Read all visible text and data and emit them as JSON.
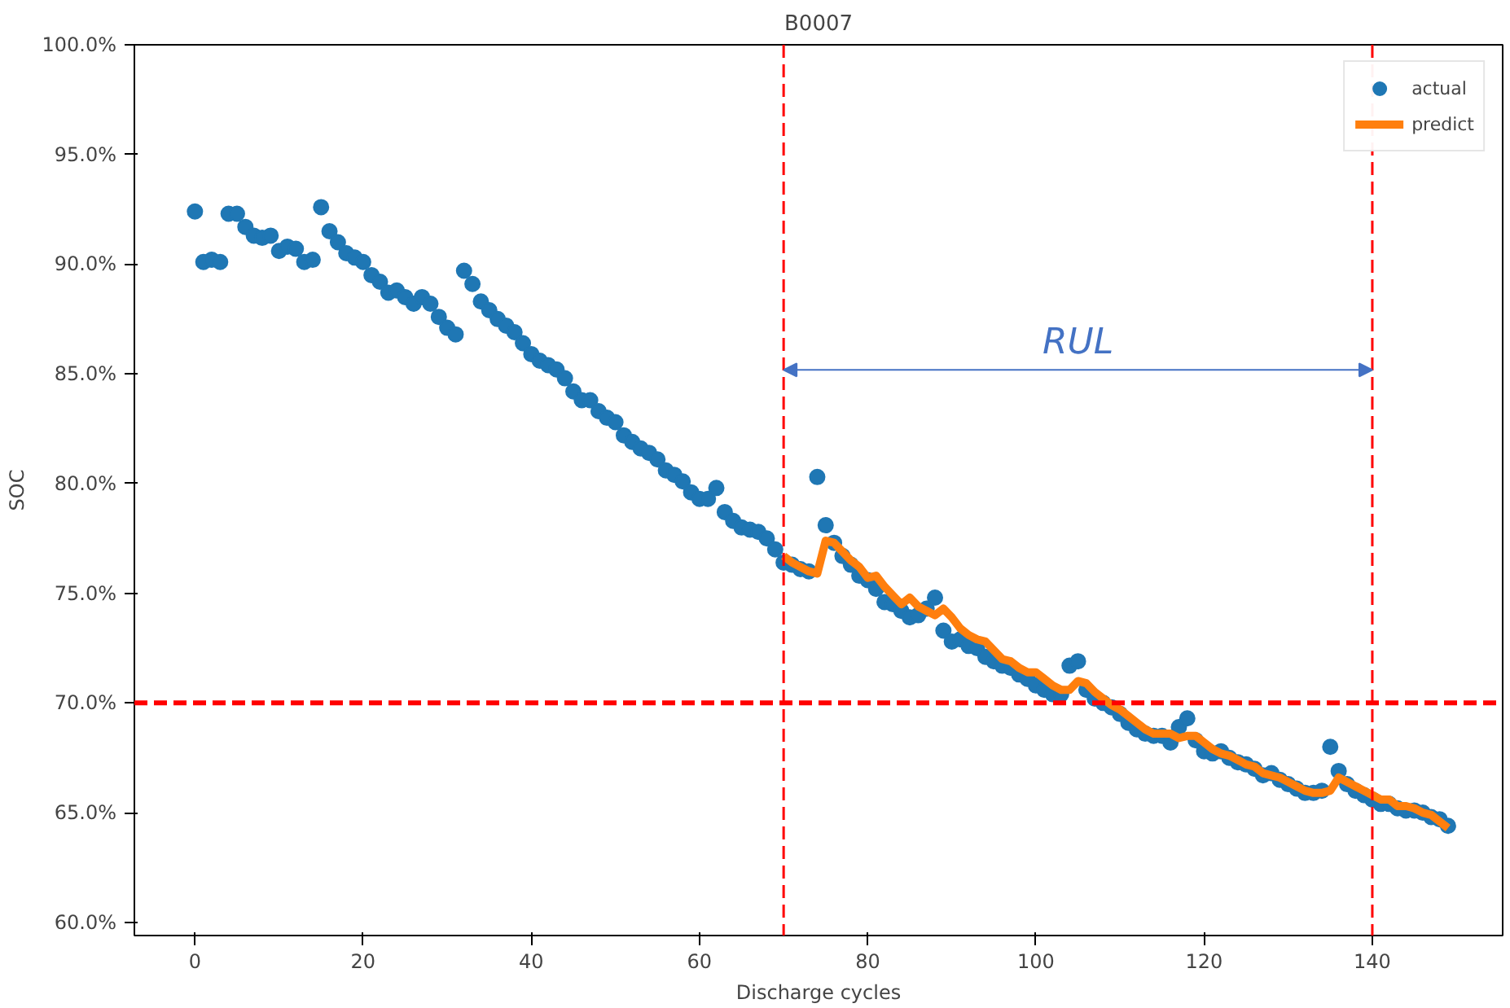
{
  "chart_data": {
    "type": "scatter",
    "title": "B0007",
    "xlabel": "Discharge cycles",
    "ylabel": "SOC",
    "xlim": [
      -7.2,
      155.5
    ],
    "ylim": [
      59.4,
      100
    ],
    "xticks": [
      0,
      20,
      40,
      60,
      80,
      100,
      120,
      140
    ],
    "yticks": [
      {
        "value": 60,
        "label": "60.0%"
      },
      {
        "value": 65,
        "label": "65.0%"
      },
      {
        "value": 70,
        "label": "70.0%"
      },
      {
        "value": 75,
        "label": "75.0%"
      },
      {
        "value": 80,
        "label": "80.0%"
      },
      {
        "value": 85,
        "label": "85.0%"
      },
      {
        "value": 90,
        "label": "90.0%"
      },
      {
        "value": 95,
        "label": "95.0%"
      },
      {
        "value": 100,
        "label": "100.0%"
      }
    ],
    "legend": "top right",
    "grid": false,
    "marker": "circle",
    "series": [
      {
        "name": "actual",
        "color": "#1f77b4",
        "x": [
          0,
          1,
          2,
          3,
          4,
          5,
          6,
          7,
          8,
          9,
          10,
          11,
          12,
          13,
          14,
          15,
          16,
          17,
          18,
          19,
          20,
          21,
          22,
          23,
          24,
          25,
          26,
          27,
          28,
          29,
          30,
          31,
          32,
          33,
          34,
          35,
          36,
          37,
          38,
          39,
          40,
          41,
          42,
          43,
          44,
          45,
          46,
          47,
          48,
          49,
          50,
          51,
          52,
          53,
          54,
          55,
          56,
          57,
          58,
          59,
          60,
          61,
          62,
          63,
          64,
          65,
          66,
          67,
          68,
          69,
          70,
          71,
          72,
          73,
          74,
          75,
          76,
          77,
          78,
          79,
          80,
          81,
          82,
          83,
          84,
          85,
          86,
          87,
          88,
          89,
          90,
          91,
          92,
          93,
          94,
          95,
          96,
          97,
          98,
          99,
          100,
          101,
          102,
          103,
          104,
          105,
          106,
          107,
          108,
          109,
          110,
          111,
          112,
          113,
          114,
          115,
          116,
          117,
          118,
          119,
          120,
          121,
          122,
          123,
          124,
          125,
          126,
          127,
          128,
          129,
          130,
          131,
          132,
          133,
          134,
          135,
          136,
          137,
          138,
          139,
          140,
          141,
          142,
          143,
          144,
          145,
          146,
          147,
          148,
          149
        ],
        "values": [
          92.4,
          90.1,
          90.2,
          90.1,
          92.3,
          92.3,
          91.7,
          91.3,
          91.2,
          91.3,
          90.6,
          90.8,
          90.7,
          90.1,
          90.2,
          92.6,
          91.5,
          91.0,
          90.5,
          90.3,
          90.1,
          89.5,
          89.2,
          88.7,
          88.8,
          88.5,
          88.2,
          88.5,
          88.2,
          87.6,
          87.1,
          86.8,
          89.7,
          89.1,
          88.3,
          87.9,
          87.5,
          87.2,
          86.9,
          86.4,
          85.9,
          85.6,
          85.4,
          85.2,
          84.8,
          84.2,
          83.8,
          83.8,
          83.3,
          83.0,
          82.8,
          82.2,
          81.9,
          81.6,
          81.4,
          81.1,
          80.6,
          80.4,
          80.1,
          79.6,
          79.3,
          79.3,
          79.8,
          78.7,
          78.3,
          78.0,
          77.9,
          77.8,
          77.5,
          77.0,
          76.4,
          76.3,
          76.1,
          76.0,
          80.3,
          78.1,
          77.3,
          76.7,
          76.3,
          75.8,
          75.6,
          75.2,
          74.6,
          74.5,
          74.2,
          73.9,
          74.0,
          74.3,
          74.8,
          73.3,
          72.8,
          72.9,
          72.6,
          72.5,
          72.1,
          71.9,
          71.7,
          71.6,
          71.3,
          71.1,
          70.8,
          70.6,
          70.4,
          70.4,
          71.7,
          71.9,
          70.6,
          70.2,
          70.0,
          69.8,
          69.5,
          69.1,
          68.8,
          68.6,
          68.5,
          68.5,
          68.2,
          68.9,
          69.3,
          68.3,
          67.8,
          67.7,
          67.8,
          67.5,
          67.3,
          67.2,
          67.0,
          66.7,
          66.8,
          66.5,
          66.3,
          66.1,
          65.9,
          65.9,
          66.0,
          68.0,
          66.9,
          66.3,
          66.0,
          65.8,
          65.6,
          65.4,
          65.4,
          65.2,
          65.1,
          65.1,
          65.0,
          64.8,
          64.7,
          64.4
        ]
      },
      {
        "name": "predict",
        "type": "line",
        "color": "#ff7f0e",
        "marker": "none",
        "line_style": "solid",
        "x": [
          70,
          71,
          72,
          73,
          74,
          75,
          76,
          77,
          78,
          79,
          80,
          81,
          82,
          83,
          84,
          85,
          86,
          87,
          88,
          89,
          90,
          91,
          92,
          93,
          94,
          95,
          96,
          97,
          98,
          99,
          100,
          101,
          102,
          103,
          104,
          105,
          106,
          107,
          108,
          109,
          110,
          111,
          112,
          113,
          114,
          115,
          116,
          117,
          118,
          119,
          120,
          121,
          122,
          123,
          124,
          125,
          126,
          127,
          128,
          129,
          130,
          131,
          132,
          133,
          134,
          135,
          136,
          137,
          138,
          139,
          140,
          141,
          142,
          143,
          144,
          145,
          146,
          147,
          148,
          149
        ],
        "values": [
          76.7,
          76.4,
          76.2,
          76.0,
          75.9,
          77.4,
          77.3,
          76.9,
          76.5,
          76.2,
          75.7,
          75.8,
          75.3,
          74.9,
          74.5,
          74.8,
          74.4,
          74.2,
          74.0,
          74.3,
          73.9,
          73.4,
          73.1,
          72.9,
          72.8,
          72.4,
          72.0,
          71.9,
          71.6,
          71.4,
          71.4,
          71.1,
          70.8,
          70.6,
          70.6,
          71.0,
          70.9,
          70.5,
          70.2,
          69.9,
          69.7,
          69.4,
          69.1,
          68.8,
          68.6,
          68.6,
          68.6,
          68.4,
          68.5,
          68.5,
          68.2,
          67.9,
          67.7,
          67.6,
          67.4,
          67.2,
          67.1,
          66.8,
          66.7,
          66.6,
          66.4,
          66.2,
          66.0,
          65.9,
          65.9,
          66.0,
          66.6,
          66.4,
          66.2,
          66.0,
          65.8,
          65.6,
          65.6,
          65.3,
          65.3,
          65.2,
          65.0,
          64.9,
          64.6,
          64.3
        ]
      }
    ],
    "ref_lines": [
      {
        "axis": "y",
        "value": 70,
        "color": "#ff0000",
        "line_style": "dashed"
      },
      {
        "axis": "x",
        "value": 70,
        "color": "#ff0000",
        "line_style": "dashed"
      },
      {
        "axis": "x",
        "value": 140,
        "color": "#ff0000",
        "line_style": "dashed"
      }
    ],
    "annotations": [
      "RUL"
    ]
  }
}
